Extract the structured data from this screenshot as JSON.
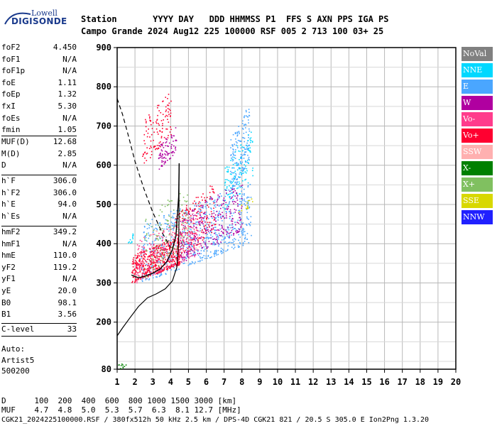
{
  "header": {
    "line1": "Station       YYYY DAY   DDD HHMMSS P1  FFS S AXN PPS IGA PS",
    "line2": "Campo Grande 2024 Aug12 225 100000 RSF 005 2 713 100 03+ 25"
  },
  "logo": {
    "top": "Lowell",
    "bottom": "DIGISONDE"
  },
  "params_group1": [
    {
      "label": "foF2",
      "value": "4.450"
    },
    {
      "label": "foF1",
      "value": "N/A"
    },
    {
      "label": "foF1p",
      "value": "N/A"
    },
    {
      "label": "foE",
      "value": "1.11"
    },
    {
      "label": "foEp",
      "value": "1.32"
    },
    {
      "label": "fxI",
      "value": "5.30"
    },
    {
      "label": "foEs",
      "value": "N/A"
    },
    {
      "label": "fmin",
      "value": "1.05"
    }
  ],
  "params_group2": [
    {
      "label": "MUF(D)",
      "value": "12.68"
    },
    {
      "label": "M(D)",
      "value": "2.85"
    },
    {
      "label": "D",
      "value": "N/A"
    }
  ],
  "params_group3": [
    {
      "label": "h`F",
      "value": "306.0"
    },
    {
      "label": "h`F2",
      "value": "306.0"
    },
    {
      "label": "h`E",
      "value": "94.0"
    },
    {
      "label": "h`Es",
      "value": "N/A"
    }
  ],
  "params_group4": [
    {
      "label": "hmF2",
      "value": "349.2"
    },
    {
      "label": "hmF1",
      "value": "N/A"
    },
    {
      "label": "hmE",
      "value": "110.0"
    },
    {
      "label": "yF2",
      "value": "119.2"
    },
    {
      "label": "yF1",
      "value": "N/A"
    },
    {
      "label": "yE",
      "value": "20.0"
    },
    {
      "label": "B0",
      "value": "98.1"
    },
    {
      "label": "B1",
      "value": "3.56"
    }
  ],
  "params_group5": [
    {
      "label": "C-level",
      "value": "33"
    }
  ],
  "auto": {
    "l1": "Auto:",
    "l2": "Artist5",
    "l3": "500200"
  },
  "legend": [
    {
      "label": "NoVal",
      "color": "#808080"
    },
    {
      "label": "NNE",
      "color": "#00d8ff"
    },
    {
      "label": "E",
      "color": "#4aa6ff"
    },
    {
      "label": "W",
      "color": "#b000a0"
    },
    {
      "label": "Vo-",
      "color": "#ff3c8c"
    },
    {
      "label": "Vo+",
      "color": "#ff0030"
    },
    {
      "label": "SSW",
      "color": "#ffb0b0"
    },
    {
      "label": "X-",
      "color": "#008000"
    },
    {
      "label": "X+",
      "color": "#80c060"
    },
    {
      "label": "SSE",
      "color": "#d8d800"
    },
    {
      "label": "NNW",
      "color": "#2020ff"
    }
  ],
  "bottom": {
    "line1": "D      100  200  400  600  800 1000 1500 3000 [km]",
    "line2": "MUF    4.7  4.8  5.0  5.3  5.7  6.3  8.1 12.7 [MHz]",
    "line3": "CGK21_2024225100000.RSF / 380fx512h 50 kHz 2.5 km / DPS-4D CGK21 821 / 20.5 S 305.0 E Ion2Png 1.3.20"
  },
  "chart_data": {
    "type": "scatter",
    "xlim": [
      1,
      20
    ],
    "ylim": [
      80,
      900
    ],
    "x_ticks": [
      1,
      2,
      3,
      4,
      5,
      6,
      7,
      8,
      9,
      10,
      11,
      12,
      13,
      14,
      15,
      16,
      17,
      18,
      19,
      20
    ],
    "y_ticks": [
      80,
      200,
      300,
      400,
      500,
      600,
      700,
      800,
      900
    ],
    "grid": true,
    "profile_line": [
      [
        1.0,
        165
      ],
      [
        1.3,
        185
      ],
      [
        1.7,
        210
      ],
      [
        2.2,
        240
      ],
      [
        2.7,
        262
      ],
      [
        3.2,
        272
      ],
      [
        3.7,
        285
      ],
      [
        4.1,
        305
      ],
      [
        4.35,
        340
      ],
      [
        4.45,
        400
      ],
      [
        4.47,
        460
      ],
      [
        4.47,
        560
      ],
      [
        4.48,
        605
      ]
    ],
    "trace_line": [
      [
        1.8,
        320
      ],
      [
        2.2,
        313
      ],
      [
        2.6,
        318
      ],
      [
        3.0,
        325
      ],
      [
        3.4,
        335
      ],
      [
        3.8,
        355
      ],
      [
        4.1,
        385
      ],
      [
        4.3,
        420
      ],
      [
        4.45,
        520
      ],
      [
        4.48,
        605
      ]
    ],
    "dashed_line": [
      [
        1.0,
        770
      ],
      [
        1.3,
        730
      ],
      [
        1.6,
        680
      ],
      [
        2.0,
        610
      ],
      [
        2.5,
        540
      ],
      [
        3.0,
        480
      ],
      [
        3.5,
        430
      ],
      [
        4.0,
        390
      ]
    ],
    "clusters": [
      {
        "series": "E",
        "color": "#4aa6ff",
        "x": [
          2.3,
          8.5
        ],
        "y": [
          300,
          560
        ],
        "n": 700
      },
      {
        "series": "E",
        "color": "#4aa6ff",
        "x": [
          7.3,
          8.4
        ],
        "y": [
          520,
          760
        ],
        "n": 180
      },
      {
        "series": "NNE",
        "color": "#00d8ff",
        "x": [
          7.0,
          8.6
        ],
        "y": [
          480,
          700
        ],
        "n": 120
      },
      {
        "series": "Vo+",
        "color": "#ff0030",
        "x": [
          1.8,
          4.5
        ],
        "y": [
          300,
          420
        ],
        "n": 500
      },
      {
        "series": "Vo+",
        "color": "#ff0030",
        "x": [
          4.2,
          6.5
        ],
        "y": [
          350,
          560
        ],
        "n": 200
      },
      {
        "series": "Vo+",
        "color": "#ff0030",
        "x": [
          2.4,
          4.0
        ],
        "y": [
          600,
          790
        ],
        "n": 120
      },
      {
        "series": "W",
        "color": "#b000a0",
        "x": [
          4.5,
          8.0
        ],
        "y": [
          350,
          560
        ],
        "n": 300
      },
      {
        "series": "W",
        "color": "#b000a0",
        "x": [
          3.3,
          4.3
        ],
        "y": [
          590,
          700
        ],
        "n": 80
      },
      {
        "series": "Vo-",
        "color": "#ff3c8c",
        "x": [
          2.0,
          5.5
        ],
        "y": [
          300,
          480
        ],
        "n": 200
      },
      {
        "series": "X+",
        "color": "#80c060",
        "x": [
          2.5,
          5.0
        ],
        "y": [
          310,
          560
        ],
        "n": 120
      },
      {
        "series": "SSW",
        "color": "#ffb0b0",
        "x": [
          3.0,
          6.0
        ],
        "y": [
          330,
          500
        ],
        "n": 80
      },
      {
        "series": "SSE",
        "color": "#d8d800",
        "x": [
          7.8,
          8.6
        ],
        "y": [
          480,
          520
        ],
        "n": 15
      },
      {
        "series": "X-",
        "color": "#008000",
        "x": [
          1.0,
          1.5
        ],
        "y": [
          80,
          100
        ],
        "n": 10
      },
      {
        "series": "NNE",
        "color": "#00d8ff",
        "x": [
          1.6,
          1.9
        ],
        "y": [
          390,
          430
        ],
        "n": 12
      }
    ]
  }
}
